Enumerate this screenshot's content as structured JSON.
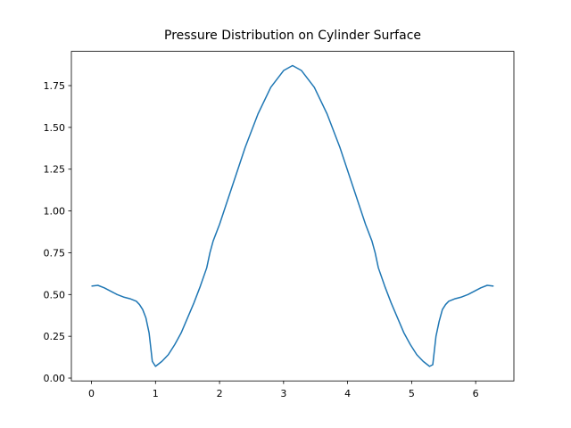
{
  "chart_data": {
    "type": "line",
    "title": "Pressure Distribution on Cylinder Surface",
    "x": [
      0,
      0.1,
      0.2,
      0.3,
      0.4,
      0.5,
      0.6,
      0.7,
      0.75,
      0.8,
      0.85,
      0.9,
      0.95,
      1.0,
      1.1,
      1.2,
      1.3,
      1.4,
      1.5,
      1.6,
      1.7,
      1.8,
      1.85,
      1.9,
      2.0,
      2.2,
      2.4,
      2.6,
      2.8,
      3.0,
      3.14,
      3.28,
      3.48,
      3.68,
      3.88,
      4.08,
      4.28,
      4.38,
      4.43,
      4.48,
      4.58,
      4.68,
      4.78,
      4.88,
      4.98,
      5.08,
      5.18,
      5.28,
      5.33,
      5.38,
      5.43,
      5.48,
      5.53,
      5.58,
      5.68,
      5.78,
      5.88,
      5.98,
      6.08,
      6.18,
      6.28
    ],
    "series": [
      {
        "color": "#1f77b4",
        "values": [
          0.55,
          0.555,
          0.54,
          0.52,
          0.5,
          0.485,
          0.475,
          0.46,
          0.44,
          0.41,
          0.36,
          0.27,
          0.1,
          0.07,
          0.1,
          0.14,
          0.2,
          0.27,
          0.36,
          0.45,
          0.55,
          0.66,
          0.75,
          0.82,
          0.92,
          1.15,
          1.38,
          1.58,
          1.74,
          1.84,
          1.87,
          1.84,
          1.74,
          1.58,
          1.38,
          1.15,
          0.92,
          0.82,
          0.75,
          0.66,
          0.55,
          0.45,
          0.36,
          0.27,
          0.2,
          0.14,
          0.1,
          0.07,
          0.08,
          0.25,
          0.34,
          0.41,
          0.44,
          0.46,
          0.475,
          0.485,
          0.5,
          0.52,
          0.54,
          0.555,
          0.55
        ]
      }
    ],
    "xlim": [
      -0.314,
      6.597
    ],
    "xticks": [
      0,
      1,
      2,
      3,
      4,
      5,
      6
    ],
    "ylim": [
      -0.017,
      1.955
    ],
    "yticks": [
      {
        "value": 0,
        "label": "0.00"
      },
      {
        "value": 0.25,
        "label": "0.25"
      },
      {
        "value": 0.5,
        "label": "0.50"
      },
      {
        "value": 0.75,
        "label": "0.75"
      },
      {
        "value": 1,
        "label": "1.00"
      },
      {
        "value": 1.25,
        "label": "1.25"
      },
      {
        "value": 1.5,
        "label": "1.50"
      },
      {
        "value": 1.75,
        "label": "1.75"
      }
    ]
  }
}
